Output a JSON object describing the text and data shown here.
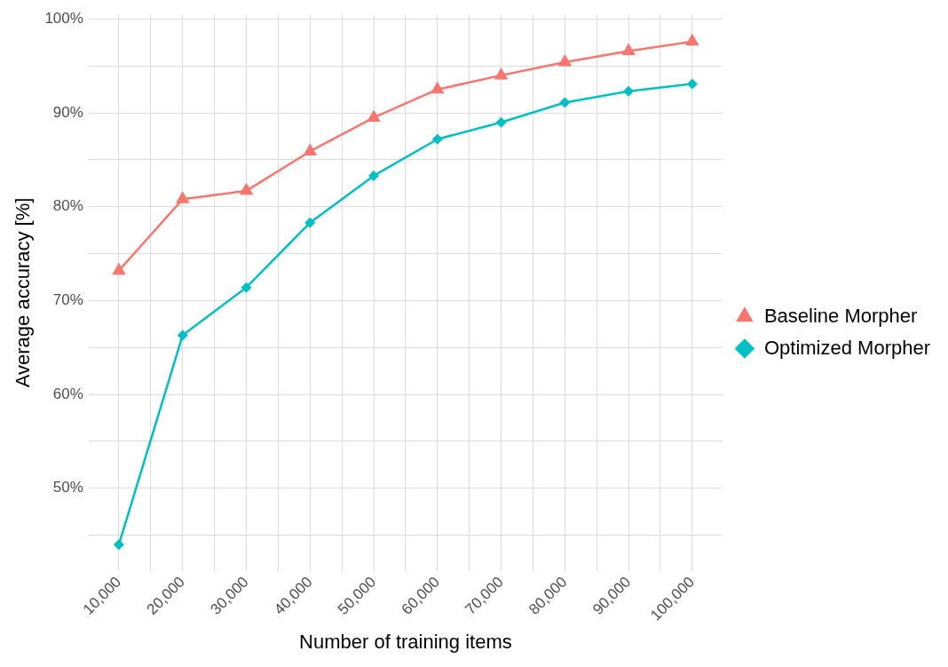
{
  "chart_data": {
    "type": "line",
    "xlabel": "Number of training items",
    "ylabel": "Average accuracy [%]",
    "x": [
      10000,
      20000,
      30000,
      40000,
      50000,
      60000,
      70000,
      80000,
      90000,
      100000
    ],
    "series": [
      {
        "name": "Baseline Morpher",
        "color": "#f8766d",
        "marker": "triangle",
        "values": [
          73.2,
          80.8,
          81.7,
          85.9,
          89.5,
          92.5,
          94.0,
          95.4,
          96.6,
          97.6
        ]
      },
      {
        "name": "Optimized Morpher",
        "color": "#00bfc4",
        "marker": "diamond",
        "values": [
          44.0,
          66.3,
          71.4,
          78.3,
          83.3,
          87.2,
          89.0,
          91.1,
          92.3,
          93.1
        ]
      }
    ],
    "xlim": [
      5250,
      104750
    ],
    "xticks": [
      {
        "value": 10000,
        "label": "10,000"
      },
      {
        "value": 15000,
        "label": null
      },
      {
        "value": 20000,
        "label": "20,000"
      },
      {
        "value": 25000,
        "label": null
      },
      {
        "value": 30000,
        "label": "30,000"
      },
      {
        "value": 35000,
        "label": null
      },
      {
        "value": 40000,
        "label": "40,000"
      },
      {
        "value": 45000,
        "label": null
      },
      {
        "value": 50000,
        "label": "50,000"
      },
      {
        "value": 55000,
        "label": null
      },
      {
        "value": 60000,
        "label": "60,000"
      },
      {
        "value": 65000,
        "label": null
      },
      {
        "value": 70000,
        "label": "70,000"
      },
      {
        "value": 75000,
        "label": null
      },
      {
        "value": 80000,
        "label": "80,000"
      },
      {
        "value": 85000,
        "label": null
      },
      {
        "value": 90000,
        "label": "90,000"
      },
      {
        "value": 95000,
        "label": null
      },
      {
        "value": 100000,
        "label": "100,000"
      }
    ],
    "ylim": [
      41.2,
      100.5
    ],
    "yticks": [
      {
        "value": 45,
        "label": null
      },
      {
        "value": 50,
        "label": "50%"
      },
      {
        "value": 55,
        "label": null
      },
      {
        "value": 60,
        "label": "60%"
      },
      {
        "value": 65,
        "label": null
      },
      {
        "value": 70,
        "label": "70%"
      },
      {
        "value": 75,
        "label": null
      },
      {
        "value": 80,
        "label": "80%"
      },
      {
        "value": 85,
        "label": null
      },
      {
        "value": 90,
        "label": "90%"
      },
      {
        "value": 95,
        "label": null
      },
      {
        "value": 100,
        "label": "100%"
      }
    ],
    "grid": true,
    "legend": "right",
    "line_style": "solid"
  }
}
